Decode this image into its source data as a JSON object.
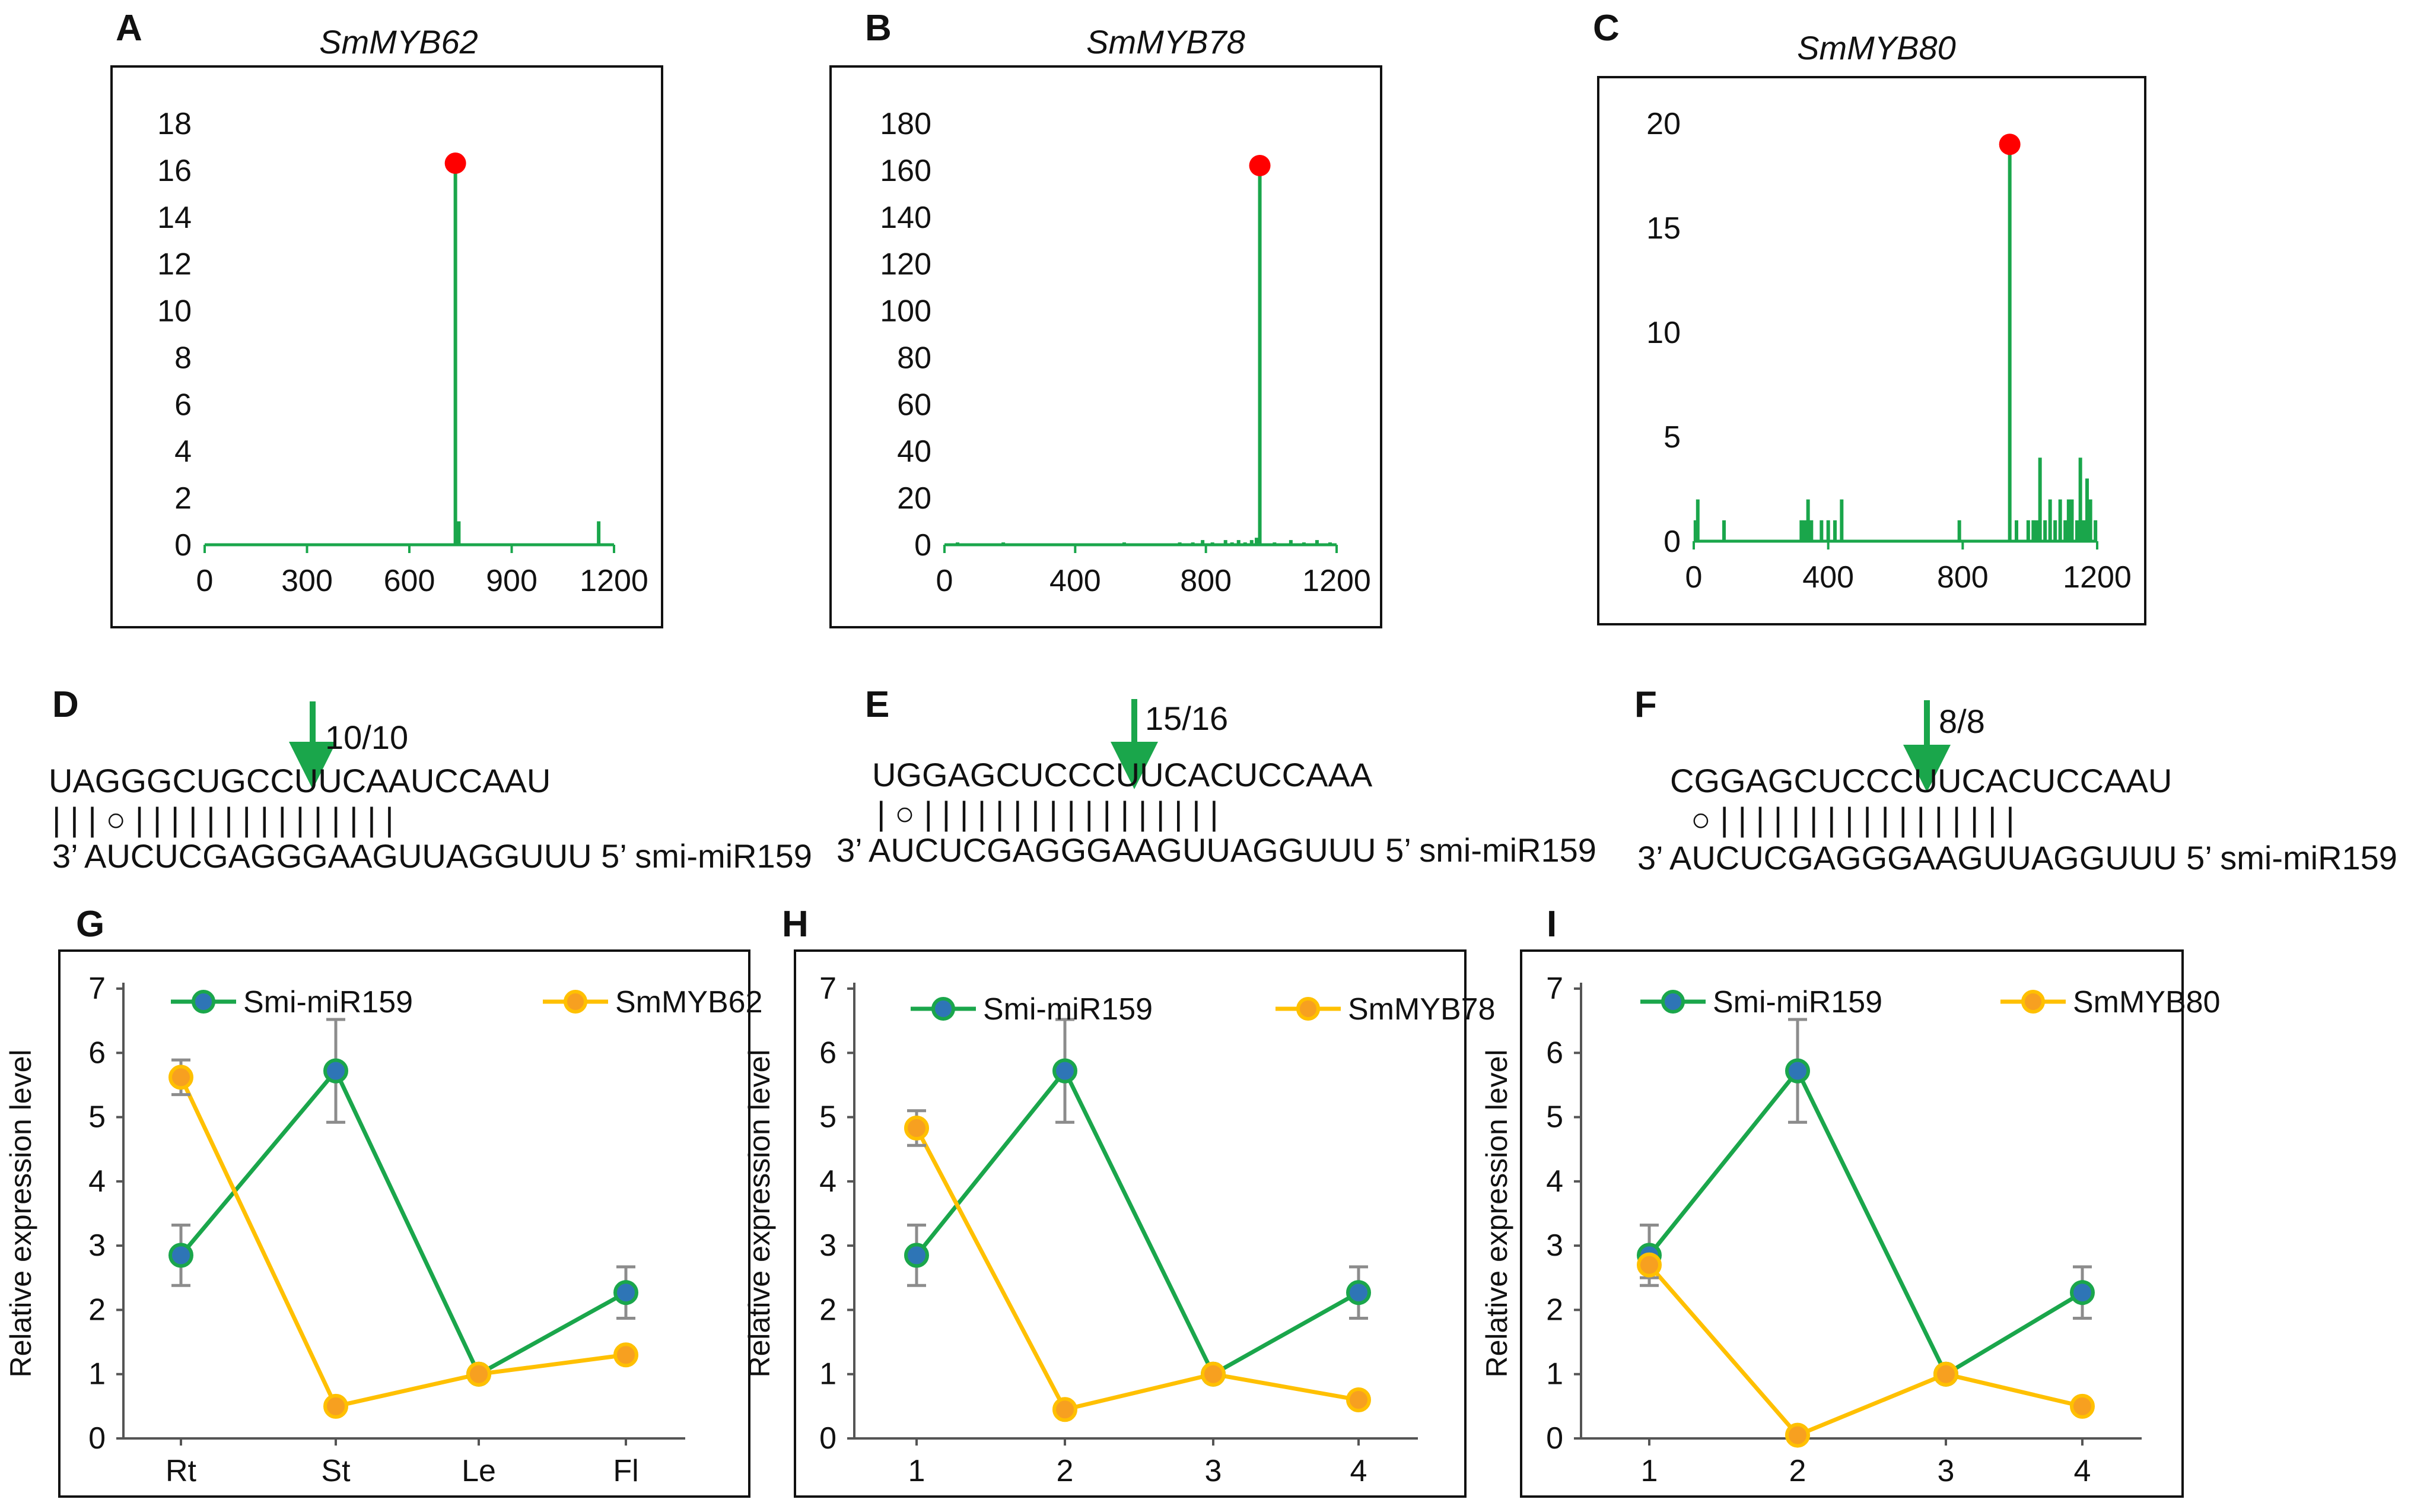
{
  "colors": {
    "green": "#1aa64b",
    "red": "#ff0000",
    "orange": "#ffc000",
    "orange_fill": "#f7a020",
    "blue": "#2e75b6",
    "error": "#8c8c8c"
  },
  "degradome": [
    {
      "label": "A",
      "gene": "SmMYB62",
      "x_ticks": [
        "0",
        "300",
        "600",
        "900",
        "1200"
      ],
      "y_ticks": [
        "0",
        "2",
        "4",
        "6",
        "8",
        "10",
        "12",
        "14",
        "16",
        "18"
      ],
      "chart_data": {
        "type": "bar",
        "title": "SmMYB62",
        "xlim": [
          0,
          1200
        ],
        "ylim": [
          0,
          18
        ],
        "x": [
          735,
          745,
          1155
        ],
        "values": [
          16.3,
          1,
          1
        ],
        "peak": {
          "x": 735,
          "y": 16.3
        }
      }
    },
    {
      "label": "B",
      "gene": "SmMYB78",
      "x_ticks": [
        "0",
        "400",
        "800",
        "1200"
      ],
      "y_ticks": [
        "0",
        "20",
        "40",
        "60",
        "80",
        "100",
        "120",
        "140",
        "160",
        "180"
      ],
      "chart_data": {
        "type": "bar",
        "title": "SmMYB78",
        "xlim": [
          0,
          1200
        ],
        "ylim": [
          0,
          180
        ],
        "x": [
          40,
          180,
          550,
          720,
          760,
          790,
          820,
          860,
          880,
          900,
          920,
          940,
          955,
          965,
          1010,
          1060,
          1100,
          1140,
          1180
        ],
        "values": [
          1,
          1,
          1,
          1,
          1,
          2,
          1,
          2,
          1,
          2,
          1,
          2,
          3,
          162,
          1,
          2,
          1,
          2,
          1
        ],
        "peak": {
          "x": 965,
          "y": 162
        }
      }
    },
    {
      "label": "C",
      "gene": "SmMYB80",
      "x_ticks": [
        "0",
        "400",
        "800",
        "1200"
      ],
      "y_ticks": [
        "0",
        "5",
        "10",
        "15",
        "20"
      ],
      "chart_data": {
        "type": "bar",
        "title": "SmMYB80",
        "xlim": [
          0,
          1200
        ],
        "ylim": [
          0,
          20
        ],
        "x": [
          5,
          12,
          90,
          320,
          330,
          340,
          350,
          380,
          400,
          420,
          440,
          790,
          940,
          960,
          995,
          1010,
          1020,
          1030,
          1045,
          1060,
          1075,
          1090,
          1105,
          1115,
          1125,
          1140,
          1150,
          1160,
          1170,
          1180,
          1195
        ],
        "values": [
          1,
          2,
          1,
          1,
          1,
          2,
          1,
          1,
          1,
          1,
          2,
          1,
          19,
          1,
          1,
          1,
          1,
          4,
          1,
          2,
          1,
          2,
          1,
          2,
          2,
          1,
          4,
          1,
          3,
          2,
          1
        ],
        "peak": {
          "x": 940,
          "y": 19
        }
      }
    }
  ],
  "alignments": [
    {
      "label": "D",
      "count": "10/10",
      "target": "UAGGGCUGCCUUCAAUCCAAU",
      "pairing": "| | |  ○ | | |   | | | | | | | |  | | | |",
      "mirna": "3’ AUCUCGAGGGAAGUUAGGUUU 5’ smi-miR159"
    },
    {
      "label": "E",
      "count": "15/16",
      "target": "UGGAGCUCCCUUCACUCCAAA",
      "pairing": "|  ○ | | | | | | | | | | |  | | | |  | |",
      "mirna": "3’ AUCUCGAGGGAAGUUAGGUUU 5’ smi-miR159"
    },
    {
      "label": "F",
      "count": "8/8",
      "target": "CGGAGCUCCCUUCACUCCAAU",
      "pairing": "○ | | | | | | | | | | | |  | | | | |",
      "mirna": "3’ AUCUCGAGGGAAGUUAGGUUU 5’ smi-miR159"
    }
  ],
  "expression": [
    {
      "label": "G",
      "ylabel": "Relative expression level",
      "y_ticks": [
        "0",
        "1",
        "2",
        "3",
        "4",
        "5",
        "6",
        "7"
      ],
      "chart_data": {
        "type": "line",
        "categories": [
          "Rt",
          "St",
          "Le",
          "Fl"
        ],
        "ylim": [
          0,
          7
        ],
        "ylabel": "Relative expression level",
        "series": [
          {
            "name": "Smi-miR159",
            "values": [
              2.85,
              5.72,
              1.0,
              2.27
            ],
            "errors": [
              0.47,
              0.8,
              0,
              0.4
            ]
          },
          {
            "name": "SmMYB62",
            "values": [
              5.62,
              0.5,
              1.0,
              1.3
            ],
            "errors": [
              0.27,
              0,
              0,
              0
            ]
          }
        ]
      }
    },
    {
      "label": "H",
      "ylabel": "Relative expression level",
      "y_ticks": [
        "0",
        "1",
        "2",
        "3",
        "4",
        "5",
        "6",
        "7"
      ],
      "chart_data": {
        "type": "line",
        "categories": [
          "1",
          "2",
          "3",
          "4"
        ],
        "ylim": [
          0,
          7
        ],
        "ylabel": "Relative expression level",
        "series": [
          {
            "name": "Smi-miR159",
            "values": [
              2.85,
              5.72,
              1.0,
              2.27
            ],
            "errors": [
              0.47,
              0.8,
              0,
              0.4
            ]
          },
          {
            "name": "SmMYB78",
            "values": [
              4.83,
              0.45,
              1.0,
              0.6
            ],
            "errors": [
              0.27,
              0,
              0,
              0
            ]
          }
        ]
      }
    },
    {
      "label": "I",
      "ylabel": "Relative expression level",
      "y_ticks": [
        "0",
        "1",
        "2",
        "3",
        "4",
        "5",
        "6",
        "7"
      ],
      "chart_data": {
        "type": "line",
        "categories": [
          "1",
          "2",
          "3",
          "4"
        ],
        "ylim": [
          0,
          7
        ],
        "ylabel": "Relative expression level",
        "series": [
          {
            "name": "Smi-miR159",
            "values": [
              2.85,
              5.72,
              1.0,
              2.27
            ],
            "errors": [
              0.47,
              0.8,
              0,
              0.4
            ]
          },
          {
            "name": "SmMYB80",
            "values": [
              2.7,
              0.05,
              1.0,
              0.5
            ],
            "errors": [
              0.2,
              0,
              0,
              0
            ]
          }
        ]
      }
    }
  ]
}
